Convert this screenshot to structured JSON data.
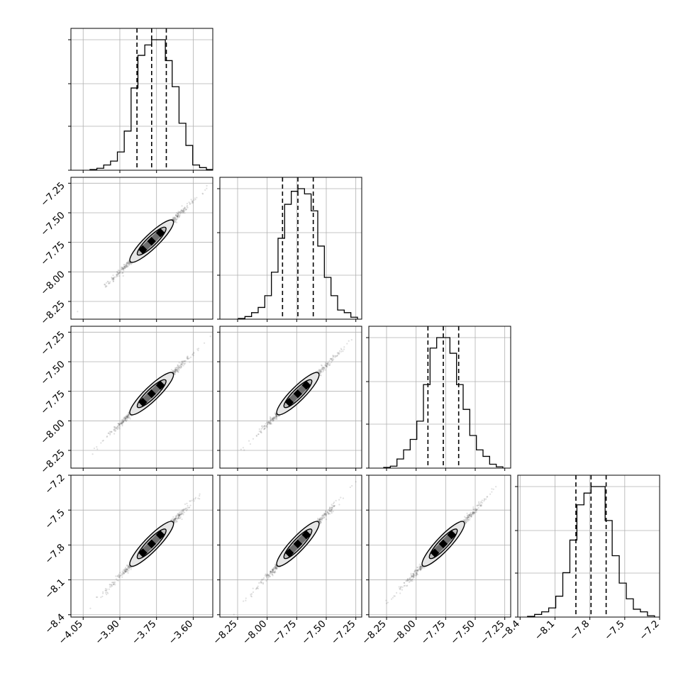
{
  "chart_data": {
    "type": "scatter",
    "title": "",
    "subtitle": "",
    "description_type": "corner",
    "grid": true,
    "legend": "none",
    "colors": {
      "line": "#000000",
      "grid": "#b0b0b0",
      "points": "#555555"
    },
    "params": [
      {
        "mean": -3.77,
        "sigma": 0.06,
        "quantiles": [
          -3.83,
          -3.77,
          -3.71
        ],
        "lim": [
          -4.1,
          -3.52
        ],
        "ticks": [
          -4.05,
          -3.9,
          -3.75,
          -3.6
        ],
        "tick_labels": [
          "−4.05",
          "−3.90",
          "−3.75",
          "−3.60"
        ]
      },
      {
        "mean": -7.74,
        "sigma": 0.12,
        "quantiles": [
          -7.87,
          -7.74,
          -7.61
        ],
        "lim": [
          -8.4,
          -7.2
        ],
        "ticks": [
          -8.25,
          -8.0,
          -7.75,
          -7.5,
          -7.25
        ],
        "tick_labels": [
          "−8.25",
          "−8.00",
          "−7.75",
          "−7.50",
          "−7.25"
        ]
      },
      {
        "mean": -7.77,
        "sigma": 0.12,
        "quantiles": [
          -7.9,
          -7.77,
          -7.64
        ],
        "lim": [
          -8.4,
          -7.2
        ],
        "ticks": [
          -8.25,
          -8.0,
          -7.75,
          -7.5,
          -7.25
        ],
        "tick_labels": [
          "−8.25",
          "−8.00",
          "−7.75",
          "−7.50",
          "−7.25"
        ]
      },
      {
        "mean": -7.79,
        "sigma": 0.13,
        "quantiles": [
          -7.92,
          -7.79,
          -7.66
        ],
        "lim": [
          -8.42,
          -7.2
        ],
        "ticks": [
          -8.4,
          -8.1,
          -7.8,
          -7.5,
          -7.2
        ],
        "tick_labels": [
          "−8.4",
          "−8.1",
          "−7.8",
          "−7.5",
          "−7.2"
        ]
      }
    ],
    "histograms": [
      [
        0.005,
        0.015,
        0.04,
        0.07,
        0.14,
        0.3,
        0.63,
        0.88,
        0.96,
        1.0,
        1.0,
        0.84,
        0.64,
        0.36,
        0.19,
        0.04,
        0.02,
        0.005
      ],
      [
        0.005,
        0.02,
        0.05,
        0.09,
        0.18,
        0.36,
        0.62,
        0.88,
        0.98,
        1.0,
        0.96,
        0.83,
        0.56,
        0.32,
        0.18,
        0.07,
        0.05,
        0.015
      ],
      [
        0.005,
        0.015,
        0.07,
        0.14,
        0.22,
        0.36,
        0.64,
        0.92,
        1.0,
        1.0,
        0.88,
        0.64,
        0.45,
        0.25,
        0.14,
        0.09,
        0.03,
        0.01
      ],
      [
        0.005,
        0.02,
        0.04,
        0.07,
        0.16,
        0.34,
        0.59,
        0.86,
        0.95,
        1.0,
        1.0,
        0.74,
        0.47,
        0.26,
        0.14,
        0.06,
        0.04,
        0.01
      ]
    ],
    "correlation": 0.995,
    "x_axis_labels": [
      "",
      "",
      "",
      ""
    ],
    "y_axis_labels": [
      "",
      "",
      "",
      ""
    ]
  }
}
